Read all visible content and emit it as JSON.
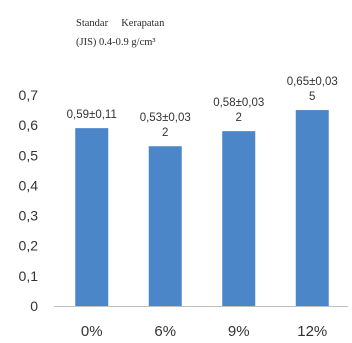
{
  "chart_data": {
    "type": "bar",
    "title": "",
    "legend_lines": [
      "Standar     Kerapatan",
      "(JIS) 0.4-0.9 g/cm³"
    ],
    "categories": [
      "0%",
      "6%",
      "9%",
      "12%"
    ],
    "values": [
      0.59,
      0.53,
      0.58,
      0.65
    ],
    "data_labels": [
      [
        "0,59±0,11"
      ],
      [
        "0,53±0,03",
        "2"
      ],
      [
        "0,58±0,03",
        "2"
      ],
      [
        "0,65±0,03",
        "5"
      ]
    ],
    "yticks": [
      "0",
      "0,1",
      "0,2",
      "0,3",
      "0,4",
      "0,5",
      "0,6",
      "0,7"
    ],
    "ylim": [
      0,
      0.7
    ],
    "xlabel": "",
    "ylabel": "",
    "grid": false,
    "bar_color": "#4a86c8"
  }
}
